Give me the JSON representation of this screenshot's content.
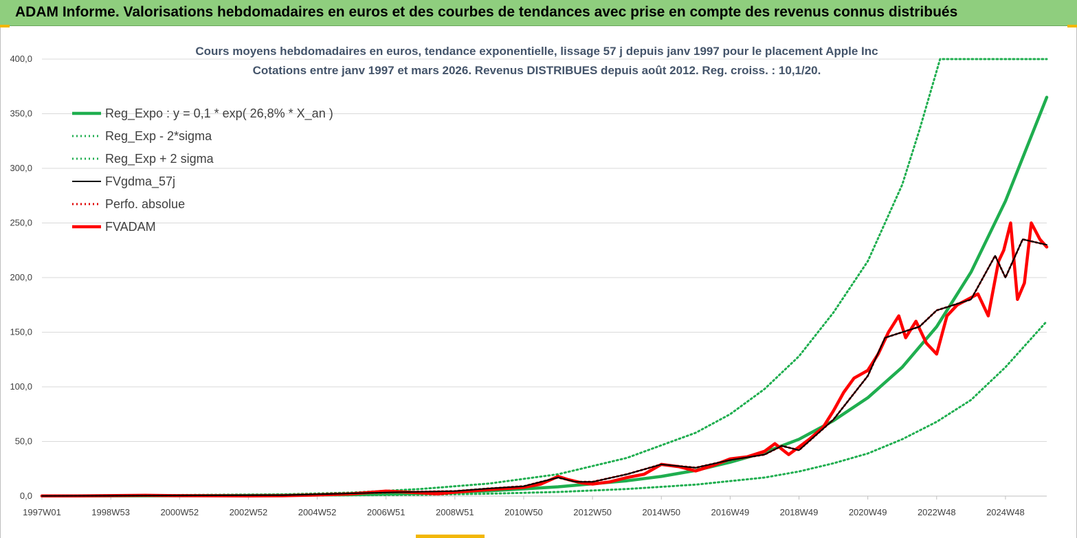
{
  "header": {
    "title": "ADAM Informe. Valorisations hebdomadaires en euros et des courbes de tendances avec prise en compte des revenus connus distribués"
  },
  "colors": {
    "header_bg": "#8fce7e",
    "accent": "#f2b705",
    "reg_expo": "#1fae4f",
    "fv_gdma": "#000000",
    "perfo": "#e00000",
    "fvadam": "#ff0000",
    "title": "#44546a"
  },
  "chart_data": {
    "type": "line",
    "title_lines": [
      "Cours moyens hebdomadaires en euros, tendance exponentielle, lissage 57 j depuis janv 1997 pour le placement Apple Inc",
      "Cotations entre janv 1997 et mars 2026. Revenus DISTRIBUES depuis août 2012. Reg. croiss. : 10,1/20."
    ],
    "xlabel": "",
    "ylabel": "",
    "ylim": [
      0,
      400
    ],
    "xlim": [
      1997.0,
      2026.2
    ],
    "grid": "horizontal",
    "legend_position": "top-left",
    "y_ticks": [
      "0,0",
      "50,0",
      "100,0",
      "150,0",
      "200,0",
      "250,0",
      "300,0",
      "350,0",
      "400,0"
    ],
    "x_tick_labels": [
      {
        "label": "1997W01",
        "x": 1997.0
      },
      {
        "label": "1998W53",
        "x": 1999.0
      },
      {
        "label": "2000W52",
        "x": 2001.0
      },
      {
        "label": "2002W52",
        "x": 2003.0
      },
      {
        "label": "2004W52",
        "x": 2005.0
      },
      {
        "label": "2006W51",
        "x": 2007.0
      },
      {
        "label": "2008W51",
        "x": 2009.0
      },
      {
        "label": "2010W50",
        "x": 2011.0
      },
      {
        "label": "2012W50",
        "x": 2013.0
      },
      {
        "label": "2014W50",
        "x": 2015.0
      },
      {
        "label": "2016W49",
        "x": 2017.0
      },
      {
        "label": "2018W49",
        "x": 2019.0
      },
      {
        "label": "2020W49",
        "x": 2021.0
      },
      {
        "label": "2022W48",
        "x": 2023.0
      },
      {
        "label": "2024W48",
        "x": 2025.0
      }
    ],
    "series": [
      {
        "name": "Reg_Expo : y = 0,1 * exp( 26,8% *  X_an )",
        "style": "solid-thick",
        "color": "#1fae4f",
        "x": [
          1997,
          2001,
          2004,
          2006,
          2008,
          2010,
          2012,
          2014,
          2015,
          2016,
          2017,
          2018,
          2019,
          2020,
          2021,
          2022,
          2023,
          2024,
          2025,
          2026.2
        ],
        "y": [
          0.1,
          0.3,
          0.7,
          1.3,
          2.6,
          4.8,
          8.5,
          14,
          18,
          23.5,
          31,
          40,
          52,
          69,
          90,
          118,
          155,
          205,
          270,
          365
        ]
      },
      {
        "name": "Reg_Exp - 2*sigma",
        "style": "dotted",
        "color": "#1fae4f",
        "x": [
          1997,
          2004,
          2008,
          2010,
          2012,
          2014,
          2016,
          2018,
          2019,
          2020,
          2021,
          2022,
          2023,
          2024,
          2025,
          2026.2
        ],
        "y": [
          0.0,
          0.3,
          1.2,
          2.2,
          3.8,
          6.5,
          10.5,
          17,
          22.5,
          30,
          39,
          52,
          68,
          88,
          118,
          160
        ]
      },
      {
        "name": "Reg_Exp + 2 sigma",
        "style": "dotted",
        "color": "#1fae4f",
        "x": [
          1997,
          2004,
          2006,
          2008,
          2010,
          2012,
          2014,
          2016,
          2017,
          2018,
          2019,
          2020,
          2021,
          2022,
          2022.5,
          2023.1,
          2026.2
        ],
        "y": [
          0.2,
          1.6,
          3.2,
          6.5,
          11.5,
          20,
          35,
          58,
          75,
          98,
          128,
          168,
          215,
          285,
          335,
          400,
          400
        ]
      },
      {
        "name": "FVgdma_57j",
        "style": "solid",
        "color": "#000000",
        "x": [
          1997,
          2000,
          2004,
          2006,
          2008,
          2009,
          2010,
          2011,
          2012,
          2012.5,
          2013,
          2014,
          2015,
          2016,
          2017,
          2018,
          2018.5,
          2019,
          2020,
          2021,
          2021.5,
          2022,
          2022.5,
          2023,
          2023.5,
          2024,
          2024.7,
          2025,
          2025.5,
          2026.2
        ],
        "y": [
          0.2,
          0.5,
          0.8,
          2.5,
          4,
          4.5,
          7,
          9,
          17,
          13,
          13,
          20,
          29,
          26,
          33,
          38,
          46,
          42,
          70,
          110,
          145,
          150,
          155,
          170,
          175,
          180,
          220,
          200,
          235,
          230
        ]
      },
      {
        "name": "Perfo. absolue",
        "style": "dotted",
        "color": "#e00000",
        "x": [
          1997,
          2000,
          2004,
          2006,
          2008,
          2009,
          2010,
          2011,
          2012,
          2012.5,
          2013,
          2014,
          2015,
          2016,
          2017,
          2018,
          2018.5,
          2019,
          2020,
          2021,
          2021.5,
          2022,
          2022.5,
          2023,
          2023.5,
          2024,
          2024.7,
          2025,
          2025.5,
          2026.2
        ],
        "y": [
          0.2,
          0.5,
          0.8,
          2.5,
          4,
          4.5,
          7,
          9,
          17,
          13,
          13,
          20,
          29,
          26,
          33,
          38,
          46,
          42,
          70,
          110,
          145,
          150,
          155,
          170,
          175,
          180,
          220,
          200,
          235,
          230
        ]
      },
      {
        "name": "FVADAM",
        "style": "solid-thick",
        "color": "#ff0000",
        "x": [
          1997,
          1998,
          2000,
          2001,
          2003,
          2004,
          2005,
          2006,
          2007,
          2008,
          2008.5,
          2009,
          2010,
          2010.5,
          2011,
          2011.5,
          2012,
          2012.3,
          2012.7,
          2013,
          2013.5,
          2014,
          2014.5,
          2015,
          2015.5,
          2016,
          2016.5,
          2017,
          2017.5,
          2018,
          2018.3,
          2018.7,
          2019,
          2019.3,
          2019.7,
          2020,
          2020.3,
          2020.6,
          2021,
          2021.3,
          2021.6,
          2021.9,
          2022.1,
          2022.4,
          2022.7,
          2023,
          2023.3,
          2023.6,
          2023.9,
          2024.2,
          2024.5,
          2024.8,
          2024.95,
          2025.15,
          2025.35,
          2025.55,
          2025.75,
          2026.0,
          2026.2
        ],
        "y": [
          0.1,
          0.2,
          0.7,
          0.4,
          0.2,
          0.3,
          1.0,
          2.0,
          4.5,
          3.0,
          2.0,
          3.5,
          6.0,
          7.0,
          8.0,
          11,
          18,
          15,
          12,
          11,
          13,
          17,
          20,
          29,
          27,
          23,
          28,
          34,
          36,
          41,
          48,
          38,
          45,
          52,
          63,
          78,
          95,
          108,
          115,
          130,
          150,
          165,
          145,
          160,
          140,
          130,
          165,
          175,
          180,
          185,
          165,
          215,
          225,
          250,
          180,
          195,
          250,
          235,
          228
        ]
      }
    ]
  }
}
